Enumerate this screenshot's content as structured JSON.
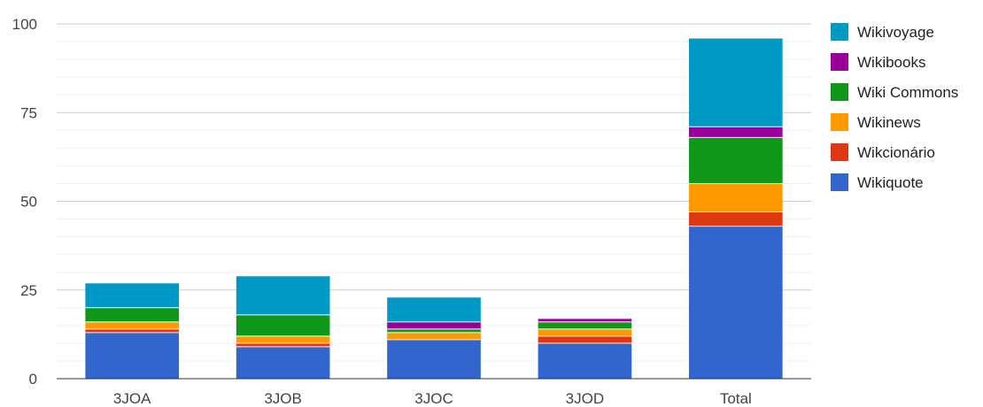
{
  "chart_data": {
    "type": "bar",
    "stacked": true,
    "categories": [
      "3JOA",
      "3JOB",
      "3JOC",
      "3JOD",
      "Total"
    ],
    "series": [
      {
        "name": "Wikiquote",
        "color": "#3366cc",
        "values": [
          13,
          9,
          11,
          10,
          43
        ]
      },
      {
        "name": "Wikcionário",
        "color": "#dc3912",
        "values": [
          1,
          1,
          0,
          2,
          4
        ]
      },
      {
        "name": "Wikinews",
        "color": "#ff9900",
        "values": [
          2,
          2,
          2,
          2,
          8
        ]
      },
      {
        "name": "Wiki Commons",
        "color": "#109618",
        "values": [
          4,
          6,
          1,
          2,
          13
        ]
      },
      {
        "name": "Wikibooks",
        "color": "#990099",
        "values": [
          0,
          0,
          2,
          1,
          3
        ]
      },
      {
        "name": "Wikivoyage",
        "color": "#0099c6",
        "values": [
          7,
          11,
          7,
          0,
          25
        ]
      }
    ],
    "ylim": [
      0,
      100
    ],
    "yticks": [
      0,
      25,
      50,
      75,
      100
    ],
    "grid": true,
    "minor_grid": true,
    "legend_position": "right",
    "legend_order": [
      "Wikivoyage",
      "Wikibooks",
      "Wiki Commons",
      "Wikinews",
      "Wikcionário",
      "Wikiquote"
    ]
  }
}
